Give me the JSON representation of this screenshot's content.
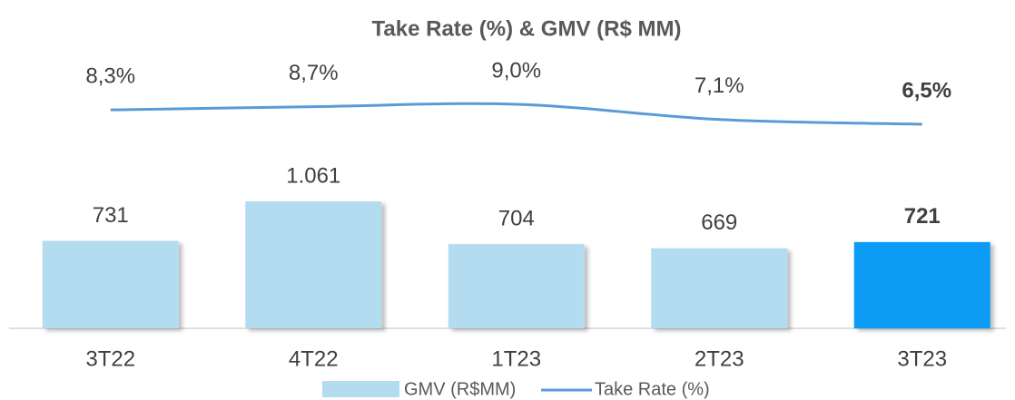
{
  "chart_data": {
    "type": "bar",
    "title": "Take Rate (%) & GMV (R$ MM)",
    "categories": [
      "3T22",
      "4T22",
      "1T23",
      "2T23",
      "3T23"
    ],
    "series": [
      {
        "name": "GMV (R$MM)",
        "type": "bar",
        "color": "#b4dcf0",
        "colors": [
          "#b4dcf0",
          "#b4dcf0",
          "#b4dcf0",
          "#b4dcf0",
          "#0a9cf5"
        ],
        "values": [
          731,
          1061,
          704,
          669,
          721
        ],
        "value_labels": [
          "731",
          "1.061",
          "704",
          "669",
          "721"
        ]
      },
      {
        "name": "Take Rate (%)",
        "type": "line",
        "axis": "y2",
        "color": "#5b9bd5",
        "values": [
          8.3,
          8.7,
          9.0,
          7.1,
          6.5
        ],
        "value_labels": [
          "8,3%",
          "8,7%",
          "9,0%",
          "7,1%",
          "6,5%"
        ]
      }
    ],
    "legend": "bottom"
  }
}
